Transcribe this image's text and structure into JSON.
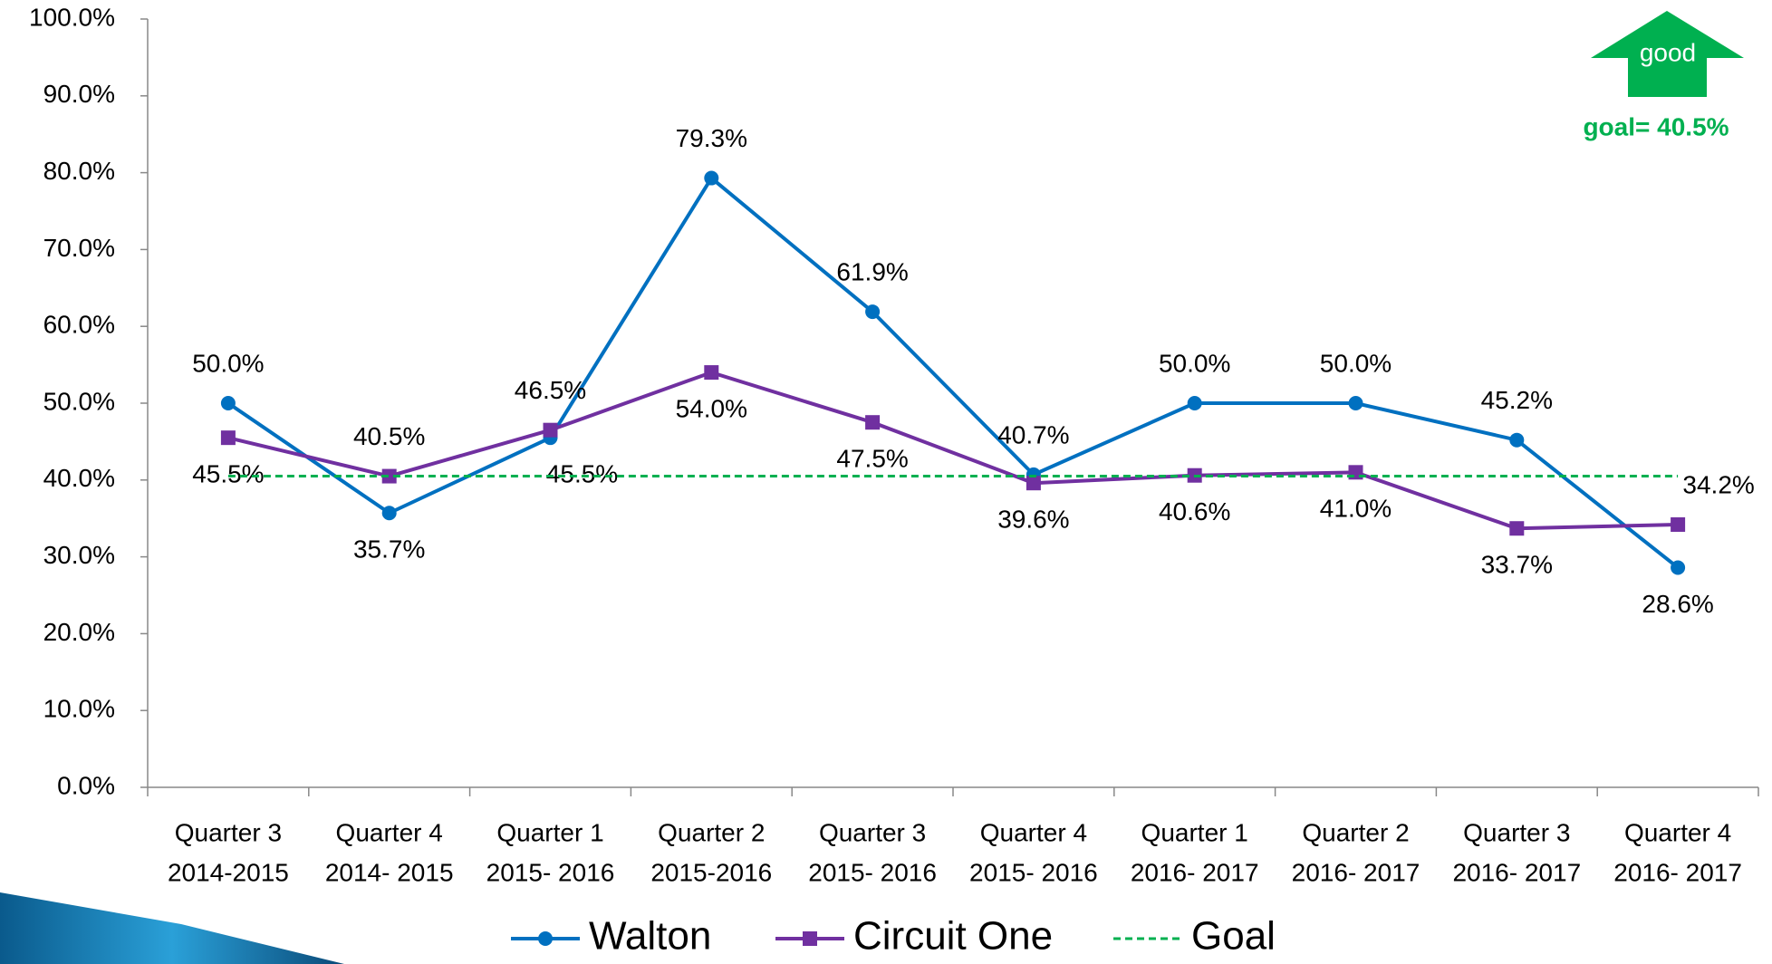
{
  "chart_data": {
    "type": "line",
    "categories": [
      [
        "Quarter 3",
        "2014-2015"
      ],
      [
        "Quarter 4",
        "2014- 2015"
      ],
      [
        "Quarter 1",
        "2015- 2016"
      ],
      [
        "Quarter 2",
        "2015-2016"
      ],
      [
        "Quarter 3",
        "2015- 2016"
      ],
      [
        "Quarter 4",
        "2015- 2016"
      ],
      [
        "Quarter 1",
        "2016- 2017"
      ],
      [
        "Quarter 2",
        "2016- 2017"
      ],
      [
        "Quarter 3",
        "2016- 2017"
      ],
      [
        "Quarter 4",
        "2016- 2017"
      ]
    ],
    "series": [
      {
        "name": "Walton",
        "color": "#0070c0",
        "marker": "circle",
        "values": [
          50.0,
          35.7,
          45.5,
          79.3,
          61.9,
          40.7,
          50.0,
          50.0,
          45.2,
          28.6
        ],
        "value_labels": [
          "50.0%",
          "35.7%",
          "45.5%",
          "79.3%",
          "61.9%",
          "40.7%",
          "50.0%",
          "50.0%",
          "45.2%",
          "28.6%"
        ]
      },
      {
        "name": "Circuit One",
        "color": "#7030a0",
        "marker": "square",
        "values": [
          45.5,
          40.5,
          46.5,
          54.0,
          47.5,
          39.6,
          40.6,
          41.0,
          33.7,
          34.2
        ],
        "value_labels": [
          "45.5%",
          "40.5%",
          "46.5%",
          "54.0%",
          "47.5%",
          "39.6%",
          "40.6%",
          "41.0%",
          "33.7%",
          "34.2%"
        ]
      },
      {
        "name": "Goal",
        "color": "#00b050",
        "dashed": true,
        "values": [
          40.5,
          40.5,
          40.5,
          40.5,
          40.5,
          40.5,
          40.5,
          40.5,
          40.5,
          40.5
        ]
      }
    ],
    "ylim": [
      0,
      100
    ],
    "yticks": [
      {
        "value": 0,
        "label": "0.0%"
      },
      {
        "value": 10,
        "label": "10.0%"
      },
      {
        "value": 20,
        "label": "20.0%"
      },
      {
        "value": 30,
        "label": "30.0%"
      },
      {
        "value": 40,
        "label": "40.0%"
      },
      {
        "value": 50,
        "label": "50.0%"
      },
      {
        "value": 60,
        "label": "60.0%"
      },
      {
        "value": 70,
        "label": "70.0%"
      },
      {
        "value": 80,
        "label": "80.0%"
      },
      {
        "value": 90,
        "label": "90.0%"
      },
      {
        "value": 100,
        "label": "100.0%"
      }
    ],
    "annotations": {
      "arrow_text": "good",
      "goal_text": "goal= 40.5%",
      "color": "#00b050"
    }
  }
}
